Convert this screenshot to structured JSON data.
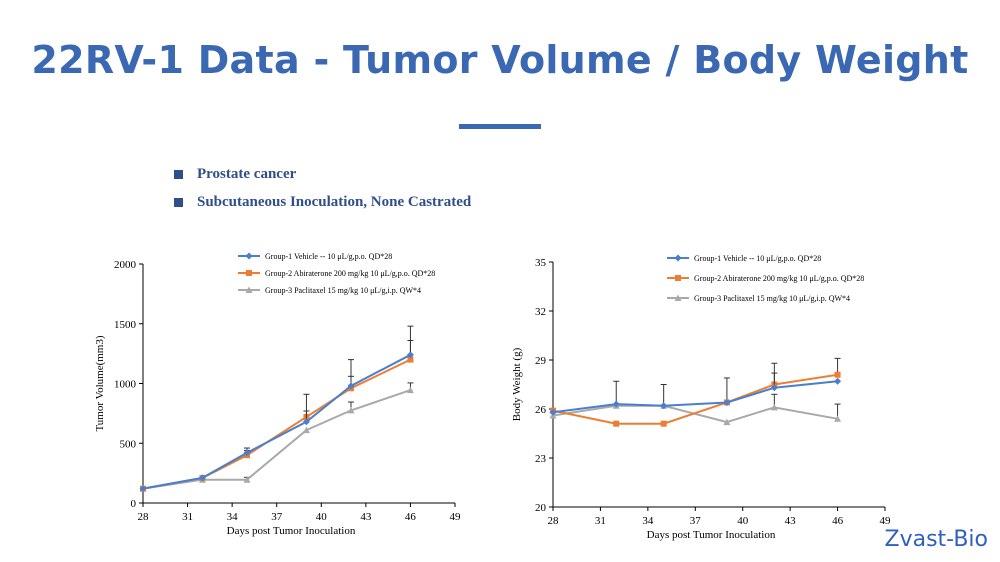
{
  "page": {
    "title": "22RV-1 Data - Tumor Volume / Body Weight",
    "bullets": [
      "Prostate cancer",
      "Subcutaneous Inoculation, None Castrated"
    ],
    "brand": "Zvast-Bio"
  },
  "colors": {
    "group1": "#4a7ecf",
    "group2": "#ed7d31",
    "group3": "#a9a9a9",
    "title": "#3a68b3",
    "bullet": "#2e4f8c"
  },
  "chart_data": [
    {
      "type": "line",
      "xlabel": "Days post Tumor Inoculation",
      "ylabel": "Tumor Volume(mm3)",
      "xlim": [
        28,
        49
      ],
      "ylim": [
        0,
        2000
      ],
      "xticks": [
        28,
        31,
        34,
        37,
        40,
        43,
        46,
        49
      ],
      "yticks": [
        0,
        500,
        1000,
        1500,
        2000
      ],
      "legend_position": "top",
      "grid": false,
      "series": [
        {
          "name": "Group-1 Vehicle -- 10 μL/g,p.o. QD*28",
          "color": "group1",
          "marker": "diamond",
          "x": [
            28,
            32,
            35,
            39,
            42,
            46
          ],
          "y": [
            120,
            210,
            420,
            680,
            980,
            1240
          ],
          "err": [
            0,
            0,
            40,
            90,
            220,
            240
          ]
        },
        {
          "name": "Group-2 Abiraterone 200 mg/kg 10 μL/g,p.o. QD*28",
          "color": "group2",
          "marker": "square",
          "x": [
            28,
            32,
            35,
            39,
            42,
            46
          ],
          "y": [
            120,
            210,
            400,
            720,
            960,
            1200
          ],
          "err": [
            0,
            0,
            40,
            190,
            100,
            160
          ]
        },
        {
          "name": "Group-3 Paclitaxel 15 mg/kg 10 μL/g,i.p. QW*4",
          "color": "group3",
          "marker": "triangle",
          "x": [
            28,
            32,
            35,
            39,
            42,
            46
          ],
          "y": [
            120,
            195,
            195,
            610,
            775,
            945
          ],
          "err": [
            0,
            0,
            20,
            0,
            70,
            60
          ]
        }
      ]
    },
    {
      "type": "line",
      "xlabel": "Days post Tumor Inoculation",
      "ylabel": "Body Weight (g)",
      "xlim": [
        28,
        49
      ],
      "ylim": [
        20,
        35
      ],
      "xticks": [
        28,
        31,
        34,
        37,
        40,
        43,
        46,
        49
      ],
      "yticks": [
        20,
        23,
        26,
        29,
        32,
        35
      ],
      "legend_position": "top",
      "grid": false,
      "series": [
        {
          "name": "Group-1 Vehicle -- 10 μL/g,p.o. QD*28",
          "color": "group1",
          "marker": "diamond",
          "x": [
            28,
            32,
            35,
            39,
            42,
            46
          ],
          "y": [
            25.8,
            26.3,
            26.2,
            26.4,
            27.3,
            27.7
          ],
          "err": [
            0,
            1.4,
            1.3,
            1.5,
            0.9,
            0
          ]
        },
        {
          "name": "Group-2 Abiraterone 200 mg/kg 10 μL/g,p.o. QD*28",
          "color": "group2",
          "marker": "square",
          "x": [
            28,
            32,
            35,
            39,
            42,
            46
          ],
          "y": [
            25.9,
            25.1,
            25.1,
            26.4,
            27.5,
            28.1
          ],
          "err": [
            0,
            0,
            0,
            0,
            1.3,
            1.0
          ]
        },
        {
          "name": "Group-3 Paclitaxel 15 mg/kg 10 μL/g,i.p. QW*4",
          "color": "group3",
          "marker": "triangle",
          "x": [
            28,
            32,
            35,
            39,
            42,
            46
          ],
          "y": [
            25.6,
            26.2,
            26.2,
            25.2,
            26.1,
            25.4
          ],
          "err": [
            0,
            0,
            0,
            0,
            0.8,
            0.9
          ]
        }
      ]
    }
  ]
}
